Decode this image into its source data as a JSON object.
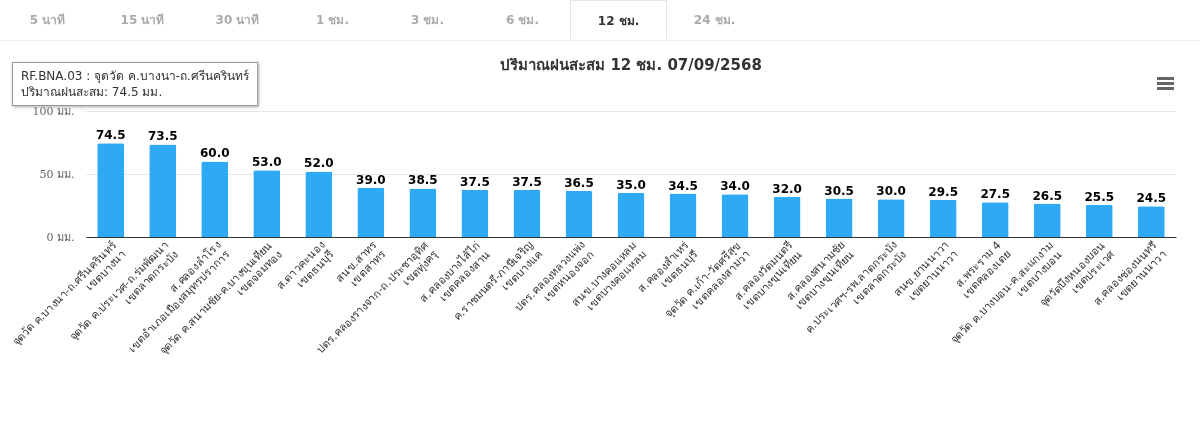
{
  "chart_data": {
    "type": "bar",
    "title": "ปริมาณฝนสะสม 12 ชม. 07/09/2568",
    "categories": [
      "จุดวัด ค.บางนา-ถ.ศรีนครินทร์\nเขตบางนา",
      "จุดวัด ค.ประเวศ-ถ.ร่มพัฒนา\nเขตลาดกระบัง",
      "ส.คลองลำโรง\nเขตอำเภอเมืองสมุทรปราการ",
      "จุดวัด ค.สนามชัย-ค.บางขุนเทียน\nเขตจอมทอง",
      "ส.ดาวคะนอง\nเขตธนบุรี",
      "สนข.สาทร\nเขตสาทร",
      "ปตร.คลองรางจาก-ถ.ประชาอุทิศ\nเขตทุ่งครุ",
      "ส.คลองบางไส้ไก่\nเขตคลองสาน",
      "ค.ราชมนตรี-ภาษีเจริญ\nเขตบางแค",
      "ปตร.คลองหลวงแพ่ง\nเขตหนองจอก",
      "สนข.บางคอแหลม\nเขตบางคอแหลม",
      "ส.คลองสำเหร่\nเขตธนบุรี",
      "จุดวัด ค.เก้า-วัดศรีสุข\nเขตคลองสามวา",
      "ส.คลองวัดมนตรี\nเขตบางขุนเทียน",
      "ส.คลองสนามชัย\nเขตบางขุนเทียน",
      "ค.ประเวศฯ-รพ.ลาดกระบัง\nเขตลาดกระบัง",
      "สนข.ยานนาวา\nเขตยานนาวา",
      "ส.พระราม 4\nเขตคลองเตย",
      "จุดวัด ค.บางบอน-ค.สะแกงาม\nเขตบางบอน",
      "จุดวัดบึงหนองบอน\nเขตประเวศ",
      "ส.คลองช่องนนทรี\nเขตยานนาวา"
    ],
    "values": [
      74.5,
      73.5,
      60.0,
      53.0,
      52.0,
      39.0,
      38.5,
      37.5,
      37.5,
      36.5,
      35.0,
      34.5,
      34.0,
      32.0,
      30.5,
      30.0,
      29.5,
      27.5,
      26.5,
      25.5,
      24.5
    ],
    "color": "#2eaaf5",
    "ylim": [
      0,
      100
    ],
    "yticks": [
      {
        "value": 0,
        "label": "0 มม."
      },
      {
        "value": 50,
        "label": "50 มม."
      },
      {
        "value": 100,
        "label": "100 มม."
      }
    ],
    "grid": "y",
    "value_labels": [
      "74.5",
      "73.5",
      "60.0",
      "53.0",
      "52.0",
      "39.0",
      "38.5",
      "37.5",
      "37.5",
      "36.5",
      "35.0",
      "34.5",
      "34.0",
      "32.0",
      "30.5",
      "30.0",
      "29.5",
      "27.5",
      "26.5",
      "25.5",
      "24.5"
    ],
    "annotations": [
      "5 นาที",
      "15 นาที",
      "30 นาที",
      "1 ชม.",
      "3 ชม.",
      "6 ชม.",
      "12 ชม.",
      "24 ชม.",
      "RF.BNA.03 : จุดวัด ค.บางนา-ถ.ศรีนครินทร์\nปริมาณฝนสะสม: 74.5 มม."
    ]
  }
}
